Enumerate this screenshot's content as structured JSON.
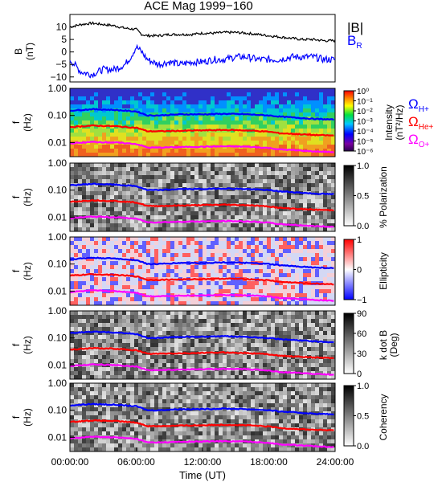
{
  "title": "ACE Mag 1999−160",
  "xlabel": "Time (UT)",
  "xticks": [
    "00:00:00",
    "06:00:00",
    "12:00:00",
    "18:00:00",
    "24:00:00"
  ],
  "legend_top": {
    "b_mag": "|B|",
    "b_r": "B",
    "b_r_sub": "R"
  },
  "legend_gyro": [
    {
      "label": "Ω",
      "sub": "H+",
      "color": "#0000ff"
    },
    {
      "label": "Ω",
      "sub": "He+",
      "color": "#ff0000"
    },
    {
      "label": "Ω",
      "sub": "O+",
      "color": "#ff00ff"
    }
  ],
  "colors": {
    "b_mag": "#000000",
    "b_r": "#0000ff",
    "gyro_h": "#0000ff",
    "gyro_he": "#ff0000",
    "gyro_o": "#ff00ff"
  },
  "panels": [
    {
      "id": "b",
      "ylabel": "B",
      "yunit": "(nT)",
      "yticks": [
        "10",
        "5",
        "0",
        "−5",
        "−10"
      ]
    },
    {
      "id": "intensity",
      "ylabel": "f",
      "yunit": "(Hz)",
      "yticks": [
        "1.00",
        "0.10",
        "0.01"
      ],
      "cbar_label": "Intensity",
      "cbar_unit": "(nT²/Hz)",
      "cbar_ticks": [
        "10⁰",
        "10⁻¹",
        "10⁻²",
        "10⁻³",
        "10⁻⁴",
        "10⁻⁵",
        "10⁻⁶"
      ]
    },
    {
      "id": "polarization",
      "ylabel": "f",
      "yunit": "(Hz)",
      "yticks": [
        "1.00",
        "0.10",
        "0.01"
      ],
      "cbar_label": "% Polarization",
      "cbar_ticks": [
        "1.0",
        "0.5",
        "0.0"
      ]
    },
    {
      "id": "ellipticity",
      "ylabel": "f",
      "yunit": "(Hz)",
      "yticks": [
        "1.00",
        "0.10",
        "0.01"
      ],
      "cbar_label": "Ellipticity",
      "cbar_ticks": [
        "1",
        "0",
        "−1"
      ]
    },
    {
      "id": "kdotb",
      "ylabel": "f",
      "yunit": "(Hz)",
      "yticks": [
        "1.00",
        "0.10",
        "0.01"
      ],
      "cbar_label": "k dot B",
      "cbar_unit": "(Deg)",
      "cbar_ticks": [
        "90",
        "60",
        "30",
        "0"
      ]
    },
    {
      "id": "coherency",
      "ylabel": "f",
      "yunit": "(Hz)",
      "yticks": [
        "1.00",
        "0.10",
        "0.01"
      ],
      "cbar_label": "Coherency",
      "cbar_ticks": [
        "1.0",
        "0.5",
        "0.0"
      ]
    }
  ],
  "chart_data": {
    "type": "line",
    "title": "ACE Mag 1999−160",
    "x_unit": "UT hours",
    "xlim": [
      0,
      24
    ],
    "magnetic_field": {
      "ylim": [
        -12,
        15
      ],
      "series": [
        {
          "name": "|B|",
          "color": "#000000",
          "x": [
            0,
            1,
            2,
            3,
            4,
            5,
            6,
            6.5,
            7,
            8,
            9,
            10,
            11,
            12,
            13,
            14,
            15,
            16,
            17,
            18,
            19,
            20,
            21,
            22,
            23,
            24
          ],
          "y": [
            10,
            11,
            11.5,
            11,
            10.5,
            9.5,
            9,
            7,
            6.5,
            6.5,
            7,
            7,
            7,
            7.5,
            7.5,
            7.8,
            7.8,
            7.5,
            7,
            6.5,
            6,
            5.5,
            5,
            5,
            4.5,
            4.5
          ]
        },
        {
          "name": "B_R",
          "color": "#0000ff",
          "x": [
            0,
            1,
            2,
            3,
            4,
            5,
            5.5,
            6,
            6.5,
            7,
            8,
            9,
            10,
            11,
            12,
            13,
            14,
            15,
            16,
            17,
            18,
            19,
            20,
            21,
            22,
            23,
            24
          ],
          "y": [
            -3,
            -8,
            -9,
            -7,
            -7,
            -5,
            -2,
            2,
            0,
            -3,
            -5,
            -4,
            -5,
            -4,
            -4,
            -3,
            -3,
            -2,
            -2,
            -3,
            -3,
            -3,
            -2,
            -2,
            -2,
            -3,
            -3
          ]
        }
      ]
    },
    "gyrofrequencies": {
      "y_unit": "Hz",
      "ylim": [
        0.003,
        1
      ],
      "series": [
        {
          "name": "ΩH+",
          "color": "#0000ff",
          "x": [
            0,
            2,
            4,
            6,
            7,
            8,
            10,
            12,
            14,
            16,
            18,
            19,
            20,
            22,
            24
          ],
          "y": [
            0.15,
            0.17,
            0.16,
            0.14,
            0.1,
            0.1,
            0.11,
            0.11,
            0.115,
            0.11,
            0.1,
            0.09,
            0.085,
            0.075,
            0.07
          ]
        },
        {
          "name": "ΩHe+",
          "color": "#ff0000",
          "x": [
            0,
            2,
            4,
            6,
            7,
            8,
            10,
            12,
            14,
            16,
            18,
            19,
            20,
            22,
            24
          ],
          "y": [
            0.037,
            0.042,
            0.04,
            0.035,
            0.026,
            0.026,
            0.027,
            0.028,
            0.029,
            0.028,
            0.025,
            0.022,
            0.021,
            0.019,
            0.018
          ]
        },
        {
          "name": "ΩO+",
          "color": "#ff00ff",
          "x": [
            0,
            2,
            4,
            6,
            7,
            8,
            10,
            12,
            14,
            16,
            18,
            19,
            20,
            22,
            24
          ],
          "y": [
            0.0092,
            0.0105,
            0.01,
            0.0088,
            0.0065,
            0.0065,
            0.0068,
            0.007,
            0.0072,
            0.007,
            0.0063,
            0.0055,
            0.0053,
            0.0047,
            0.0044
          ]
        }
      ]
    }
  }
}
